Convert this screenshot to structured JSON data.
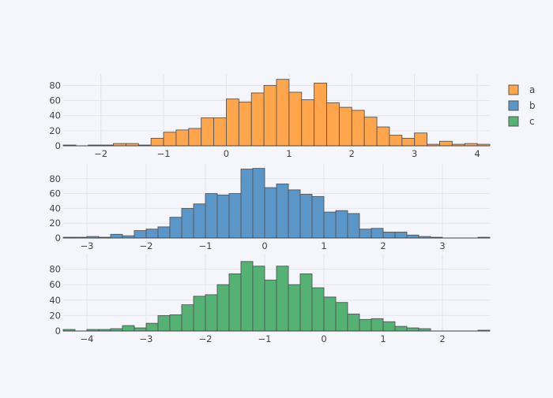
{
  "chart_data": [
    {
      "type": "bar",
      "series_name": "a",
      "color": "#ffa64d",
      "bin_width": 0.2,
      "x_range": [
        -2.6,
        4.2
      ],
      "ylim": [
        0,
        95
      ],
      "x_ticks": [
        -2,
        -1,
        0,
        1,
        2,
        3,
        4
      ],
      "x_tick_labels": [
        "−2",
        "−1",
        "0",
        "1",
        "2",
        "3",
        "4"
      ],
      "y_ticks": [
        0,
        20,
        40,
        60,
        80
      ],
      "bin_starts": [
        -2.6,
        -2.4,
        -2.2,
        -2.0,
        -1.8,
        -1.6,
        -1.4,
        -1.2,
        -1.0,
        -0.8,
        -0.6,
        -0.4,
        -0.2,
        0.0,
        0.2,
        0.4,
        0.6,
        0.8,
        1.0,
        1.2,
        1.4,
        1.6,
        1.8,
        2.0,
        2.2,
        2.4,
        2.6,
        2.8,
        3.0,
        3.2,
        3.4,
        3.6,
        3.8,
        4.0
      ],
      "counts": [
        1,
        0,
        1,
        1,
        3,
        3,
        1,
        10,
        18,
        21,
        23,
        37,
        37,
        62,
        58,
        70,
        80,
        88,
        71,
        61,
        83,
        57,
        51,
        47,
        38,
        25,
        14,
        10,
        17,
        2,
        6,
        2,
        3,
        2
      ]
    },
    {
      "type": "bar",
      "series_name": "b",
      "color": "#5b96c8",
      "bin_width": 0.2,
      "x_range": [
        -3.4,
        3.8
      ],
      "ylim": [
        0,
        100
      ],
      "x_ticks": [
        -3,
        -2,
        -1,
        0,
        1,
        2,
        3
      ],
      "x_tick_labels": [
        "−3",
        "−2",
        "−1",
        "0",
        "1",
        "2",
        "3"
      ],
      "y_ticks": [
        0,
        20,
        40,
        60,
        80
      ],
      "bin_starts": [
        -3.4,
        -3.2,
        -3.0,
        -2.8,
        -2.6,
        -2.4,
        -2.2,
        -2.0,
        -1.8,
        -1.6,
        -1.4,
        -1.2,
        -1.0,
        -0.8,
        -0.6,
        -0.4,
        -0.2,
        0.0,
        0.2,
        0.4,
        0.6,
        0.8,
        1.0,
        1.2,
        1.4,
        1.6,
        1.8,
        2.0,
        2.2,
        2.4,
        2.6,
        2.8,
        3.0,
        3.2,
        3.4,
        3.6
      ],
      "counts": [
        1,
        1,
        2,
        1,
        5,
        3,
        10,
        12,
        15,
        28,
        40,
        46,
        60,
        58,
        60,
        93,
        94,
        68,
        73,
        65,
        59,
        56,
        35,
        37,
        33,
        12,
        13,
        8,
        8,
        4,
        2,
        1,
        0,
        0,
        0,
        1
      ]
    },
    {
      "type": "bar",
      "series_name": "c",
      "color": "#55b275",
      "bin_width": 0.2,
      "x_range": [
        -4.4,
        2.8
      ],
      "ylim": [
        0,
        100
      ],
      "x_ticks": [
        -4,
        -3,
        -2,
        -1,
        0,
        1,
        2
      ],
      "x_tick_labels": [
        "−4",
        "−3",
        "−2",
        "−1",
        "0",
        "1",
        "2"
      ],
      "y_ticks": [
        0,
        20,
        40,
        60,
        80
      ],
      "bin_starts": [
        -4.4,
        -4.2,
        -4.0,
        -3.8,
        -3.6,
        -3.4,
        -3.2,
        -3.0,
        -2.8,
        -2.6,
        -2.4,
        -2.2,
        -2.0,
        -1.8,
        -1.6,
        -1.4,
        -1.2,
        -1.0,
        -0.8,
        -0.6,
        -0.4,
        -0.2,
        0.0,
        0.2,
        0.4,
        0.6,
        0.8,
        1.0,
        1.2,
        1.4,
        1.6,
        1.8,
        2.0,
        2.2,
        2.4,
        2.6
      ],
      "counts": [
        2,
        0,
        2,
        2,
        3,
        7,
        4,
        10,
        20,
        21,
        34,
        45,
        47,
        60,
        74,
        90,
        84,
        66,
        84,
        60,
        74,
        56,
        44,
        37,
        22,
        15,
        16,
        12,
        6,
        4,
        3,
        0,
        0,
        0,
        0,
        1
      ]
    }
  ],
  "legend": {
    "placement": "top-right",
    "items": [
      {
        "label": "a",
        "color": "#ffa64d"
      },
      {
        "label": "b",
        "color": "#5b96c8"
      },
      {
        "label": "c",
        "color": "#55b275"
      }
    ]
  }
}
